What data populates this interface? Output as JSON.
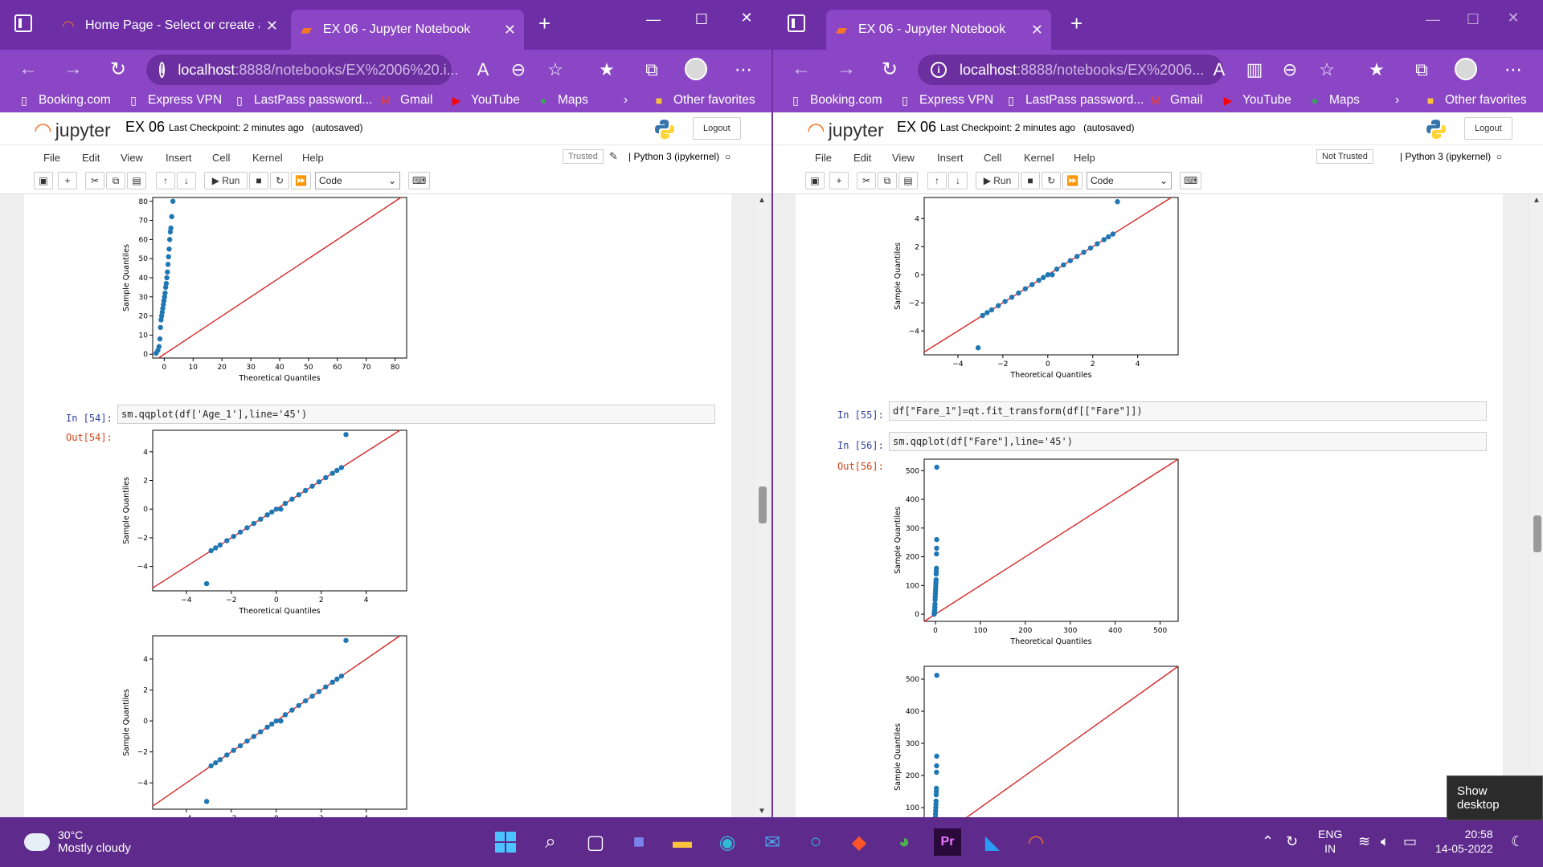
{
  "left": {
    "tabs": [
      {
        "label": "Home Page - Select or create a n",
        "active": false
      },
      {
        "label": "EX 06 - Jupyter Notebook",
        "active": true
      }
    ],
    "url_host": "localhost",
    "url_rest": ":8888/notebooks/EX%2006%20.i...",
    "notebook": {
      "title": "EX 06",
      "checkpoint": "Last Checkpoint: 2 minutes ago",
      "autosaved": "(autosaved)",
      "trusted": "Trusted",
      "kernel": "Python 3 (ipykernel)",
      "cell_type": "Code"
    },
    "cells": [
      {
        "prompt": "In [54]:",
        "code": "sm.qqplot(df['Age_1'],line='45')"
      },
      {
        "prompt": "Out[54]:"
      }
    ]
  },
  "right": {
    "tabs": [
      {
        "label": "EX 06 - Jupyter Notebook",
        "active": true
      }
    ],
    "url_host": "localhost",
    "url_rest": ":8888/notebooks/EX%2006...",
    "notebook": {
      "title": "EX 06",
      "checkpoint": "Last Checkpoint: 2 minutes ago",
      "autosaved": "(autosaved)",
      "trusted": "Not Trusted",
      "kernel": "Python 3 (ipykernel)",
      "cell_type": "Code"
    },
    "cells": [
      {
        "prompt": "In [55]:",
        "code": "df[\"Fare_1\"]=qt.fit_transform(df[[\"Fare\"]])"
      },
      {
        "prompt": "In [56]:",
        "code": "sm.qqplot(df[\"Fare\"],line='45')"
      },
      {
        "prompt": "Out[56]:"
      }
    ]
  },
  "bookmarks": [
    "Booking.com",
    "Express VPN",
    "LastPass password...",
    "Gmail",
    "YouTube",
    "Maps"
  ],
  "other_favorites": "Other favorites",
  "brand": "jupyter",
  "menu": [
    "File",
    "Edit",
    "View",
    "Insert",
    "Cell",
    "Kernel",
    "Help"
  ],
  "run_label": "Run",
  "logout_label": "Logout",
  "taskbar": {
    "temp": "30°C",
    "weather": "Mostly cloudy",
    "lang_top": "ENG",
    "lang_bottom": "IN",
    "time": "20:58",
    "date": "14-05-2022",
    "tooltip": "Show desktop"
  },
  "chart_data": [
    {
      "type": "scatter",
      "id": "qq-age-raw",
      "xlabel": "Theoretical Quantiles",
      "ylabel": "Sample Quantiles",
      "xlim": [
        -4,
        84
      ],
      "ylim": [
        -2,
        82
      ],
      "xticks": [
        0,
        10,
        20,
        30,
        40,
        50,
        60,
        70,
        80
      ],
      "yticks": [
        0,
        10,
        20,
        30,
        40,
        50,
        60,
        70,
        80
      ],
      "line": "45",
      "series": [
        {
          "x": [
            -2.8,
            -2.2,
            -1.8,
            -1.5,
            -1.3,
            -1.1,
            -0.9,
            -0.7,
            -0.5,
            -0.3,
            -0.1,
            0.1,
            0.3,
            0.5,
            0.7,
            0.9,
            1.1,
            1.3,
            1.5,
            1.7,
            1.9,
            2.1,
            2.3,
            2.6,
            3.0
          ],
          "y": [
            0.5,
            2,
            4,
            8,
            14,
            18,
            20,
            22,
            24,
            26,
            28,
            30,
            32,
            35,
            37,
            40,
            43,
            47,
            51,
            55,
            60,
            64,
            66,
            72,
            80
          ]
        }
      ]
    },
    {
      "type": "scatter",
      "id": "qq-age-1",
      "xlabel": "Theoretical Quantiles",
      "ylabel": "Sample Quantiles",
      "xlim": [
        -5.5,
        5.8
      ],
      "ylim": [
        -5.7,
        5.5
      ],
      "xticks": [
        -4,
        -2,
        0,
        2,
        4
      ],
      "yticks": [
        -4,
        -2,
        0,
        2,
        4
      ],
      "line": "45",
      "series": [
        {
          "x": [
            -3.1,
            -2.9,
            -2.7,
            -2.5,
            -2.2,
            -1.9,
            -1.6,
            -1.3,
            -1.0,
            -0.7,
            -0.4,
            -0.2,
            0,
            0.2,
            0.4,
            0.7,
            1.0,
            1.3,
            1.6,
            1.9,
            2.2,
            2.5,
            2.7,
            2.9,
            3.1
          ],
          "y": [
            -5.2,
            -2.9,
            -2.7,
            -2.5,
            -2.2,
            -1.9,
            -1.6,
            -1.3,
            -1.0,
            -0.7,
            -0.4,
            -0.2,
            0,
            0,
            0.4,
            0.7,
            1.0,
            1.3,
            1.6,
            1.9,
            2.2,
            2.5,
            2.7,
            2.9,
            5.2
          ]
        }
      ]
    },
    {
      "type": "scatter",
      "id": "qq-age-1-dup",
      "ylabel": "Sample Quantiles",
      "xlim": [
        -5.5,
        5.8
      ],
      "ylim": [
        -5.7,
        5.5
      ],
      "xticks": [
        -4,
        -2,
        0,
        2,
        4
      ],
      "yticks": [
        -4,
        -2,
        0,
        2,
        4
      ],
      "line": "45",
      "series": [
        {
          "x": [
            -3.1,
            -2.9,
            -2.7,
            -2.5,
            -2.2,
            -1.9,
            -1.6,
            -1.3,
            -1.0,
            -0.7,
            -0.4,
            -0.2,
            0,
            0.2,
            0.4,
            0.7,
            1.0,
            1.3,
            1.6,
            1.9,
            2.2,
            2.5,
            2.7,
            2.9,
            3.1
          ],
          "y": [
            -5.2,
            -2.9,
            -2.7,
            -2.5,
            -2.2,
            -1.9,
            -1.6,
            -1.3,
            -1.0,
            -0.7,
            -0.4,
            -0.2,
            0,
            0,
            0.4,
            0.7,
            1.0,
            1.3,
            1.6,
            1.9,
            2.2,
            2.5,
            2.7,
            2.9,
            5.2
          ]
        }
      ]
    },
    {
      "type": "scatter",
      "id": "qq-fare-1",
      "xlabel": "Theoretical Quantiles",
      "ylabel": "Sample Quantiles",
      "xlim": [
        -5.5,
        5.8
      ],
      "ylim": [
        -5.7,
        5.5
      ],
      "xticks": [
        -4,
        -2,
        0,
        2,
        4
      ],
      "yticks": [
        -4,
        -2,
        0,
        2,
        4
      ],
      "line": "45",
      "series": [
        {
          "x": [
            -3.1,
            -2.9,
            -2.7,
            -2.5,
            -2.2,
            -1.9,
            -1.6,
            -1.3,
            -1.0,
            -0.7,
            -0.4,
            -0.2,
            0,
            0.2,
            0.4,
            0.7,
            1.0,
            1.3,
            1.6,
            1.9,
            2.2,
            2.5,
            2.7,
            2.9,
            3.1
          ],
          "y": [
            -5.2,
            -2.9,
            -2.7,
            -2.5,
            -2.2,
            -1.9,
            -1.6,
            -1.3,
            -1.0,
            -0.7,
            -0.4,
            -0.2,
            0,
            0,
            0.4,
            0.7,
            1.0,
            1.3,
            1.6,
            1.9,
            2.2,
            2.5,
            2.7,
            2.9,
            5.2
          ]
        }
      ]
    },
    {
      "type": "scatter",
      "id": "qq-fare",
      "xlabel": "Theoretical Quantiles",
      "ylabel": "Sample Quantiles",
      "xlim": [
        -25,
        540
      ],
      "ylim": [
        -25,
        540
      ],
      "xticks": [
        0,
        100,
        200,
        300,
        400,
        500
      ],
      "yticks": [
        0,
        100,
        200,
        300,
        400,
        500
      ],
      "line": "45",
      "series": [
        {
          "x": [
            -2.8,
            -2.5,
            -2.2,
            -1.9,
            -1.6,
            -1.3,
            -1.0,
            -0.7,
            -0.4,
            -0.1,
            0.2,
            0.5,
            0.8,
            1.1,
            1.4,
            1.7,
            2.0,
            2.2,
            2.4,
            2.6,
            2.8,
            3.0
          ],
          "y": [
            0,
            5,
            8,
            10,
            15,
            25,
            35,
            50,
            60,
            70,
            80,
            90,
            100,
            110,
            120,
            140,
            150,
            160,
            210,
            230,
            260,
            512
          ]
        }
      ]
    },
    {
      "type": "scatter",
      "id": "qq-fare-dup",
      "ylabel": "Sample Quantiles",
      "xlim": [
        -25,
        540
      ],
      "ylim": [
        -25,
        540
      ],
      "yticks": [
        100,
        200,
        300,
        400,
        500
      ],
      "line": "45",
      "series": [
        {
          "x": [
            -2.8,
            -2.5,
            -2.2,
            -1.9,
            -1.6,
            -1.3,
            -1.0,
            -0.7,
            -0.4,
            -0.1,
            0.2,
            0.5,
            0.8,
            1.1,
            1.4,
            1.7,
            2.0,
            2.2,
            2.4,
            2.6,
            2.8,
            3.0
          ],
          "y": [
            0,
            5,
            8,
            10,
            15,
            25,
            35,
            50,
            60,
            70,
            80,
            90,
            100,
            110,
            120,
            140,
            150,
            160,
            210,
            230,
            260,
            512
          ]
        }
      ]
    }
  ]
}
